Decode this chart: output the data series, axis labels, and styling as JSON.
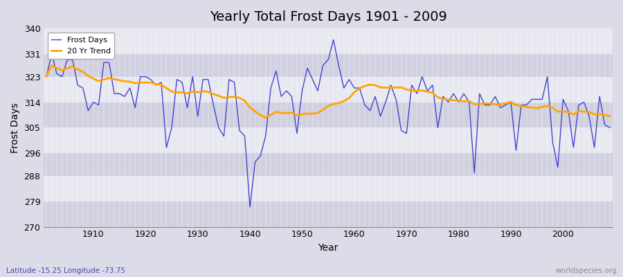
{
  "title": "Yearly Total Frost Days 1901 - 2009",
  "xlabel": "Year",
  "ylabel": "Frost Days",
  "subtitle": "Latitude -15.25 Longitude -73.75",
  "watermark": "worldspecies.org",
  "years": [
    1901,
    1902,
    1903,
    1904,
    1905,
    1906,
    1907,
    1908,
    1909,
    1910,
    1911,
    1912,
    1913,
    1914,
    1915,
    1916,
    1917,
    1918,
    1919,
    1920,
    1921,
    1922,
    1923,
    1924,
    1925,
    1926,
    1927,
    1928,
    1929,
    1930,
    1931,
    1932,
    1933,
    1934,
    1935,
    1936,
    1937,
    1938,
    1939,
    1940,
    1941,
    1942,
    1943,
    1944,
    1945,
    1946,
    1947,
    1948,
    1949,
    1950,
    1951,
    1952,
    1953,
    1954,
    1955,
    1956,
    1957,
    1958,
    1959,
    1960,
    1961,
    1962,
    1963,
    1964,
    1965,
    1966,
    1967,
    1968,
    1969,
    1970,
    1971,
    1972,
    1973,
    1974,
    1975,
    1976,
    1977,
    1978,
    1979,
    1980,
    1981,
    1982,
    1983,
    1984,
    1985,
    1986,
    1987,
    1988,
    1989,
    1990,
    1991,
    1992,
    1993,
    1994,
    1995,
    1996,
    1997,
    1998,
    1999,
    2000,
    2001,
    2002,
    2003,
    2004,
    2005,
    2006,
    2007,
    2008,
    2009
  ],
  "frost_days": [
    323,
    331,
    324,
    323,
    329,
    329,
    320,
    319,
    311,
    314,
    313,
    328,
    328,
    317,
    317,
    316,
    319,
    312,
    323,
    323,
    322,
    320,
    321,
    298,
    305,
    322,
    321,
    312,
    323,
    309,
    322,
    322,
    313,
    305,
    302,
    322,
    321,
    304,
    302,
    277,
    293,
    295,
    302,
    319,
    325,
    316,
    318,
    316,
    303,
    318,
    326,
    322,
    318,
    327,
    329,
    336,
    327,
    319,
    322,
    319,
    319,
    313,
    311,
    316,
    309,
    314,
    320,
    315,
    304,
    303,
    320,
    317,
    323,
    318,
    320,
    305,
    316,
    314,
    317,
    314,
    317,
    314,
    289,
    317,
    313,
    313,
    316,
    312,
    313,
    314,
    297,
    313,
    313,
    315,
    315,
    315,
    323,
    300,
    291,
    315,
    311,
    298,
    313,
    314,
    309,
    298,
    316,
    306,
    305
  ],
  "ylim": [
    270,
    340
  ],
  "yticks": [
    270,
    279,
    288,
    296,
    305,
    314,
    323,
    331,
    340
  ],
  "line_color": "#4444cc",
  "trend_color": "#ffa500",
  "bg_color": "#dcdce8",
  "bg_light": "#e8e8f0",
  "bg_dark": "#d0d0e0",
  "grid_color": "#ffffff",
  "legend_loc": "upper left"
}
